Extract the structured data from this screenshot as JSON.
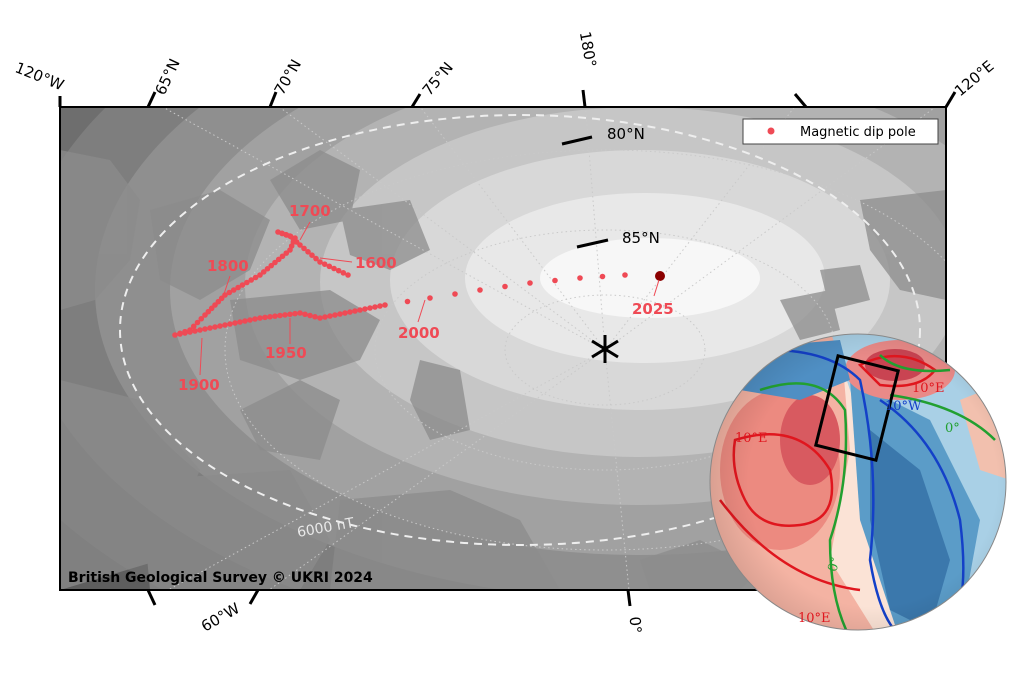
{
  "map": {
    "edge_labels": [
      "120°W",
      "65°N",
      "70°N",
      "75°N",
      "180°",
      "120°E",
      "60°W",
      "0°"
    ],
    "inner_labels": [
      "80°N",
      "85°N"
    ],
    "legend": {
      "label": "Magnetic dip pole"
    },
    "pole_years": [
      1700,
      1600,
      1800,
      1950,
      1900,
      2000,
      2025
    ],
    "contour_label": "6000 nT",
    "credit": "British Geological Survey © UKRI 2024",
    "inset_globe": {
      "contour_labels": [
        "10°E",
        "10°W",
        "0°",
        "10°E",
        "0°",
        "10°E"
      ]
    }
  }
}
